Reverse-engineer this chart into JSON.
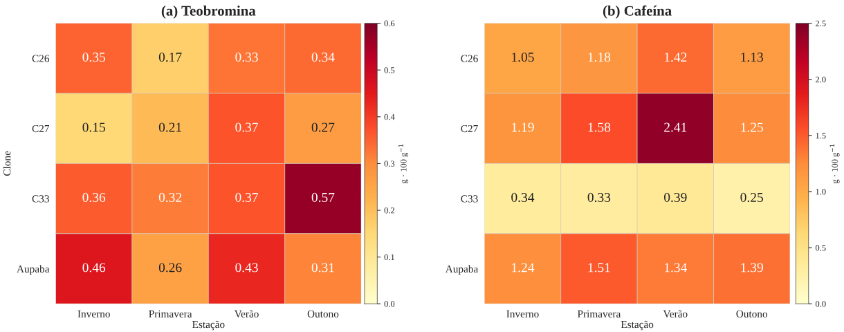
{
  "chart_data": [
    {
      "type": "heatmap",
      "title": "(a) Teobromina",
      "xlabel": "Estação",
      "ylabel": "Clone",
      "clabel": "g · 100 g$^{−1}$",
      "categories": [
        "Inverno",
        "Primavera",
        "Verão",
        "Outono"
      ],
      "y_categories": [
        "C26",
        "C27",
        "C33",
        "Aupaba"
      ],
      "cells": [
        [
          0.35,
          0.17,
          0.33,
          0.34
        ],
        [
          0.15,
          0.21,
          0.37,
          0.27
        ],
        [
          0.36,
          0.32,
          0.37,
          0.57
        ],
        [
          0.46,
          0.26,
          0.43,
          0.31
        ]
      ],
      "clim": [
        0.0,
        0.6
      ],
      "cticks": [
        {
          "value": 0,
          "label": "0.0"
        },
        0.1,
        0.2,
        0.3,
        0.4,
        0.5,
        0.6
      ],
      "data_labels": true
    },
    {
      "type": "heatmap",
      "title": "(b) Cafeína",
      "xlabel": "Estação",
      "clabel": "g · 100 g$^{−1}$",
      "categories": [
        "Inverno",
        "Primavera",
        "Verão",
        "Outono"
      ],
      "y_categories": [
        "C26",
        "C27",
        "C33",
        "Aupaba"
      ],
      "cells": [
        [
          1.05,
          1.18,
          1.42,
          1.13
        ],
        [
          1.19,
          1.58,
          2.41,
          1.25
        ],
        [
          0.34,
          0.33,
          0.39,
          0.25
        ],
        [
          1.24,
          1.51,
          1.34,
          1.39
        ]
      ],
      "clim": [
        0.0,
        2.5
      ],
      "cticks": [
        {
          "value": 0,
          "label": "0.0"
        },
        0.5,
        {
          "value": 1,
          "label": "1.0"
        },
        1.5,
        {
          "value": 2,
          "label": "2.0"
        },
        2.5
      ],
      "data_labels": true
    }
  ]
}
